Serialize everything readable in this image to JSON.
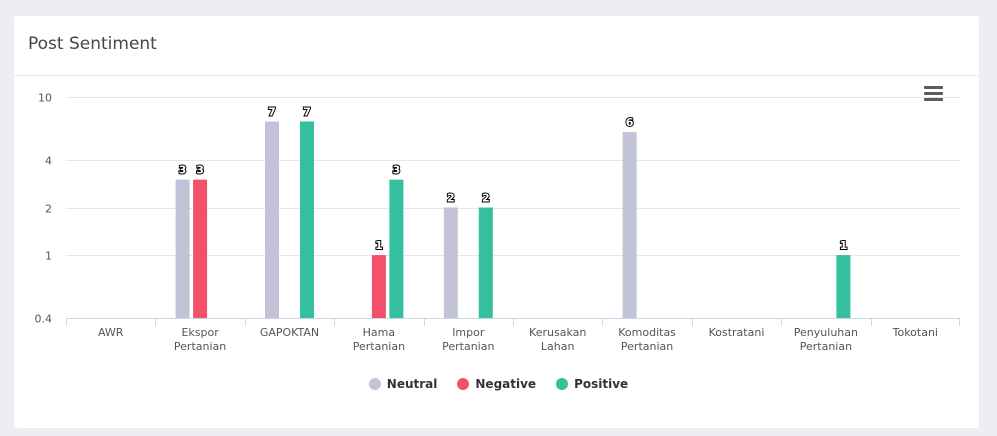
{
  "card": {
    "title": "Post Sentiment"
  },
  "colors": {
    "neutral": "#c2c3d7",
    "negative": "#f2506b",
    "positive": "#34bf9f",
    "grid": "#e6e6e6",
    "axis": "#ccd6eb"
  },
  "menu": {
    "icon": "hamburger-menu-icon"
  },
  "chart_data": {
    "type": "bar",
    "yscale": "log",
    "ylim": [
      0.4,
      10
    ],
    "yticks": [
      "0.4",
      "1",
      "2",
      "4",
      "10"
    ],
    "categories": [
      [
        "AWR"
      ],
      [
        "Ekspor",
        "Pertanian"
      ],
      [
        "GAPOKTAN"
      ],
      [
        "Hama",
        "Pertanian"
      ],
      [
        "Impor",
        "Pertanian"
      ],
      [
        "Kerusakan",
        "Lahan"
      ],
      [
        "Komoditas",
        "Pertanian"
      ],
      [
        "Kostratani"
      ],
      [
        "Penyuluhan",
        "Pertanian"
      ],
      [
        "Tokotani"
      ]
    ],
    "series": [
      {
        "name": "Neutral",
        "color": "#c2c3d7",
        "values": [
          null,
          3,
          7,
          null,
          2,
          null,
          6,
          null,
          null,
          null
        ]
      },
      {
        "name": "Negative",
        "color": "#f2506b",
        "values": [
          null,
          3,
          null,
          1,
          null,
          null,
          null,
          null,
          null,
          null
        ]
      },
      {
        "name": "Positive",
        "color": "#34bf9f",
        "values": [
          null,
          null,
          7,
          3,
          2,
          null,
          null,
          null,
          1,
          null
        ]
      }
    ],
    "legend_position": "bottom-center",
    "grid": true
  }
}
